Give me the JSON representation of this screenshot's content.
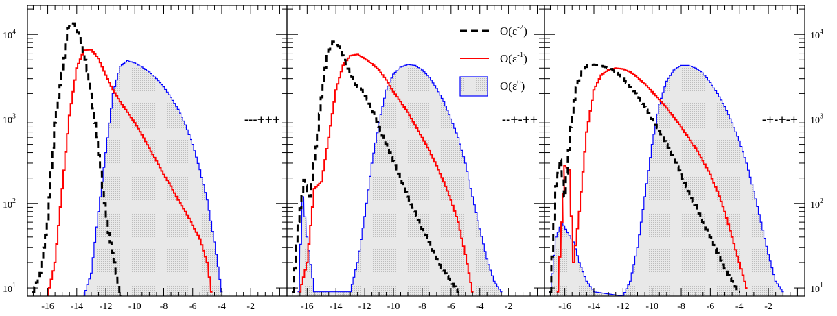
{
  "chart_data": {
    "type": "histogram",
    "layout": "three panels side by side with shared log-scale y axis",
    "x_range": [
      -17.4,
      0.5
    ],
    "x_ticks": [
      -16,
      -14,
      -12,
      -10,
      -8,
      -6,
      -4,
      -2
    ],
    "y_scale": "log",
    "y_range": [
      8,
      22000
    ],
    "y_ticks": [
      {
        "value": 10,
        "base": "10",
        "exp": "1"
      },
      {
        "value": 100,
        "base": "10",
        "exp": "2"
      },
      {
        "value": 1000,
        "base": "10",
        "exp": "3"
      },
      {
        "value": 10000,
        "base": "10",
        "exp": "4"
      }
    ],
    "legend": {
      "placement": "top-right of middle panel",
      "entries": [
        {
          "series": "eps2",
          "base": "O(ε",
          "exp": "-2",
          "close": ")",
          "color": "#000000",
          "style": "dashed"
        },
        {
          "series": "eps1",
          "base": "O(ε",
          "exp": "-1",
          "close": ")",
          "color": "#ff0000",
          "style": "solid"
        },
        {
          "series": "eps0",
          "base": "O(ε",
          "exp": "0",
          "close": ")",
          "color": "#0000ff",
          "style": "filled",
          "fill": "#e6e6e6"
        }
      ]
    },
    "panels": [
      {
        "label": "---+++",
        "series": {
          "eps2": {
            "points": [
              [
                -17.0,
                9
              ],
              [
                -16.5,
                15
              ],
              [
                -16.0,
                60
              ],
              [
                -15.5,
                900
              ],
              [
                -15.0,
                3500
              ],
              [
                -14.6,
                12000
              ],
              [
                -14.2,
                13500
              ],
              [
                -13.8,
                9500
              ],
              [
                -13.4,
                5000
              ],
              [
                -13.0,
                2000
              ],
              [
                -12.6,
                600
              ],
              [
                -12.2,
                150
              ],
              [
                -11.8,
                45
              ],
              [
                -11.4,
                20
              ],
              [
                -11.0,
                8
              ]
            ]
          },
          "eps1": {
            "points": [
              [
                -16.0,
                8
              ],
              [
                -15.5,
                20
              ],
              [
                -15.0,
                150
              ],
              [
                -14.5,
                1100
              ],
              [
                -14.0,
                4000
              ],
              [
                -13.5,
                6500
              ],
              [
                -13.0,
                6600
              ],
              [
                -12.5,
                5200
              ],
              [
                -12.0,
                3300
              ],
              [
                -11.5,
                2200
              ],
              [
                -11.0,
                1600
              ],
              [
                -10.5,
                1200
              ],
              [
                -10.0,
                900
              ],
              [
                -9.5,
                650
              ],
              [
                -9.0,
                450
              ],
              [
                -8.5,
                320
              ],
              [
                -8.0,
                220
              ],
              [
                -7.5,
                160
              ],
              [
                -7.0,
                110
              ],
              [
                -6.5,
                80
              ],
              [
                -6.0,
                55
              ],
              [
                -5.5,
                38
              ],
              [
                -5.0,
                20
              ],
              [
                -4.7,
                9
              ]
            ]
          },
          "eps0": {
            "points": [
              [
                -13.5,
                8
              ],
              [
                -13.0,
                15
              ],
              [
                -12.5,
                80
              ],
              [
                -12.0,
                400
              ],
              [
                -11.5,
                2000
              ],
              [
                -11.0,
                4200
              ],
              [
                -10.5,
                4900
              ],
              [
                -10.0,
                4600
              ],
              [
                -9.5,
                4100
              ],
              [
                -9.0,
                3600
              ],
              [
                -8.5,
                3000
              ],
              [
                -8.0,
                2400
              ],
              [
                -7.5,
                1800
              ],
              [
                -7.0,
                1300
              ],
              [
                -6.5,
                850
              ],
              [
                -6.0,
                500
              ],
              [
                -5.5,
                250
              ],
              [
                -5.0,
                110
              ],
              [
                -4.5,
                35
              ],
              [
                -4.0,
                9
              ]
            ]
          }
        }
      },
      {
        "label": "--+-++",
        "series": {
          "eps2": {
            "points": [
              [
                -17.0,
                9
              ],
              [
                -16.6,
                60
              ],
              [
                -16.2,
                190
              ],
              [
                -15.8,
                120
              ],
              [
                -15.5,
                300
              ],
              [
                -15.0,
                1800
              ],
              [
                -14.6,
                6000
              ],
              [
                -14.2,
                8200
              ],
              [
                -13.8,
                7200
              ],
              [
                -13.4,
                5000
              ],
              [
                -13.0,
                3500
              ],
              [
                -12.6,
                2500
              ],
              [
                -12.2,
                2200
              ],
              [
                -11.8,
                1700
              ],
              [
                -11.4,
                1200
              ],
              [
                -11.0,
                800
              ],
              [
                -10.5,
                500
              ],
              [
                -10.0,
                320
              ],
              [
                -9.5,
                200
              ],
              [
                -9.0,
                120
              ],
              [
                -8.5,
                80
              ],
              [
                -8.0,
                50
              ],
              [
                -7.5,
                35
              ],
              [
                -7.0,
                22
              ],
              [
                -6.5,
                16
              ],
              [
                -6.0,
                12
              ],
              [
                -5.5,
                9
              ]
            ]
          },
          "eps1": {
            "points": [
              [
                -16.5,
                9
              ],
              [
                -16.0,
                20
              ],
              [
                -15.5,
                150
              ],
              [
                -15.0,
                180
              ],
              [
                -14.5,
                600
              ],
              [
                -14.0,
                2200
              ],
              [
                -13.5,
                4300
              ],
              [
                -13.0,
                5600
              ],
              [
                -12.5,
                5800
              ],
              [
                -12.0,
                5200
              ],
              [
                -11.5,
                4500
              ],
              [
                -11.0,
                3800
              ],
              [
                -10.5,
                2900
              ],
              [
                -10.0,
                2100
              ],
              [
                -9.5,
                1600
              ],
              [
                -9.0,
                1200
              ],
              [
                -8.5,
                850
              ],
              [
                -8.0,
                600
              ],
              [
                -7.5,
                420
              ],
              [
                -7.0,
                280
              ],
              [
                -6.5,
                180
              ],
              [
                -6.0,
                110
              ],
              [
                -5.5,
                60
              ],
              [
                -5.0,
                25
              ],
              [
                -4.5,
                9
              ]
            ]
          },
          "eps0": {
            "points": [
              [
                -16.6,
                9
              ],
              [
                -16.3,
                120
              ],
              [
                -16.0,
                40
              ],
              [
                -15.5,
                9
              ],
              [
                -13.0,
                9
              ],
              [
                -12.5,
                20
              ],
              [
                -12.0,
                70
              ],
              [
                -11.5,
                300
              ],
              [
                -11.0,
                900
              ],
              [
                -10.5,
                2200
              ],
              [
                -10.0,
                3400
              ],
              [
                -9.5,
                4100
              ],
              [
                -9.0,
                4400
              ],
              [
                -8.5,
                4300
              ],
              [
                -8.0,
                3800
              ],
              [
                -7.5,
                3100
              ],
              [
                -7.0,
                2300
              ],
              [
                -6.5,
                1600
              ],
              [
                -6.0,
                1000
              ],
              [
                -5.5,
                600
              ],
              [
                -5.0,
                300
              ],
              [
                -4.5,
                120
              ],
              [
                -4.0,
                50
              ],
              [
                -3.5,
                22
              ],
              [
                -3.0,
                12
              ],
              [
                -2.5,
                9
              ]
            ]
          }
        }
      },
      {
        "label": "-+-+-+",
        "series": {
          "eps2": {
            "points": [
              [
                -17.0,
                9
              ],
              [
                -16.6,
                160
              ],
              [
                -16.3,
                330
              ],
              [
                -16.0,
                120
              ],
              [
                -15.6,
                800
              ],
              [
                -15.2,
                2400
              ],
              [
                -14.8,
                3800
              ],
              [
                -14.4,
                4300
              ],
              [
                -14.0,
                4400
              ],
              [
                -13.6,
                4300
              ],
              [
                -13.2,
                4100
              ],
              [
                -12.8,
                3900
              ],
              [
                -12.4,
                3500
              ],
              [
                -12.0,
                3000
              ],
              [
                -11.5,
                2400
              ],
              [
                -11.0,
                1900
              ],
              [
                -10.5,
                1400
              ],
              [
                -10.0,
                1000
              ],
              [
                -9.5,
                720
              ],
              [
                -9.0,
                500
              ],
              [
                -8.5,
                340
              ],
              [
                -8.0,
                220
              ],
              [
                -7.5,
                140
              ],
              [
                -7.0,
                95
              ],
              [
                -6.5,
                60
              ],
              [
                -6.0,
                40
              ],
              [
                -5.5,
                26
              ],
              [
                -5.0,
                17
              ],
              [
                -4.5,
                12
              ],
              [
                -4.0,
                9
              ]
            ]
          },
          "eps1": {
            "points": [
              [
                -16.5,
                9
              ],
              [
                -16.2,
                60
              ],
              [
                -16.0,
                280
              ],
              [
                -15.7,
                250
              ],
              [
                -15.4,
                20
              ],
              [
                -15.0,
                80
              ],
              [
                -14.5,
                700
              ],
              [
                -14.0,
                2200
              ],
              [
                -13.5,
                3300
              ],
              [
                -13.0,
                3800
              ],
              [
                -12.5,
                4000
              ],
              [
                -12.0,
                3900
              ],
              [
                -11.5,
                3600
              ],
              [
                -11.0,
                3100
              ],
              [
                -10.5,
                2600
              ],
              [
                -10.0,
                2100
              ],
              [
                -9.5,
                1700
              ],
              [
                -9.0,
                1350
              ],
              [
                -8.5,
                1050
              ],
              [
                -8.0,
                800
              ],
              [
                -7.5,
                600
              ],
              [
                -7.0,
                450
              ],
              [
                -6.5,
                320
              ],
              [
                -6.0,
                220
              ],
              [
                -5.5,
                140
              ],
              [
                -5.0,
                80
              ],
              [
                -4.5,
                40
              ],
              [
                -4.0,
                20
              ],
              [
                -3.5,
                10
              ]
            ]
          },
          "eps0": {
            "points": [
              [
                -17.0,
                9
              ],
              [
                -16.6,
                40
              ],
              [
                -16.2,
                60
              ],
              [
                -15.8,
                45
              ],
              [
                -15.4,
                35
              ],
              [
                -15.0,
                20
              ],
              [
                -14.5,
                12
              ],
              [
                -14.0,
                9
              ],
              [
                -12.0,
                8
              ],
              [
                -11.5,
                12
              ],
              [
                -11.0,
                30
              ],
              [
                -10.5,
                120
              ],
              [
                -10.0,
                500
              ],
              [
                -9.5,
                1500
              ],
              [
                -9.0,
                2800
              ],
              [
                -8.5,
                3800
              ],
              [
                -8.0,
                4300
              ],
              [
                -7.5,
                4300
              ],
              [
                -7.0,
                4000
              ],
              [
                -6.5,
                3500
              ],
              [
                -6.0,
                2700
              ],
              [
                -5.5,
                2000
              ],
              [
                -5.0,
                1400
              ],
              [
                -4.5,
                900
              ],
              [
                -4.0,
                550
              ],
              [
                -3.5,
                300
              ],
              [
                -3.0,
                140
              ],
              [
                -2.5,
                60
              ],
              [
                -2.0,
                25
              ],
              [
                -1.5,
                12
              ],
              [
                -1.0,
                9
              ]
            ]
          }
        }
      }
    ]
  }
}
